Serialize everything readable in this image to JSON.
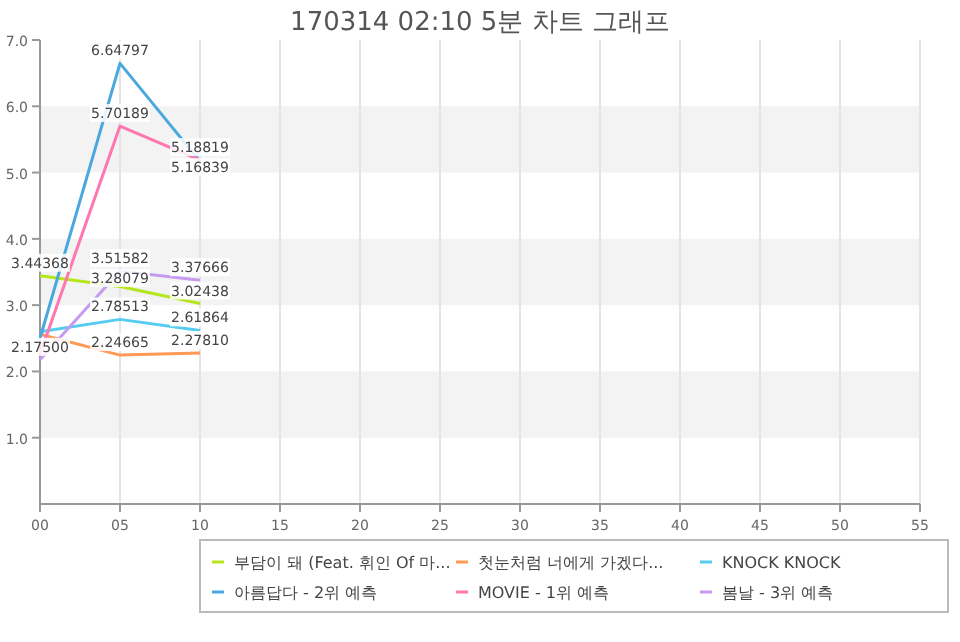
{
  "chart_data": {
    "type": "line",
    "title": "170314 02:10 5분 차트 그래프",
    "x": [
      0,
      5,
      10
    ],
    "xlim": [
      0,
      55
    ],
    "xticks": [
      {
        "value": 0,
        "label": "00"
      },
      {
        "value": 5,
        "label": "05"
      },
      {
        "value": 10,
        "label": "10"
      },
      {
        "value": 15,
        "label": "15"
      },
      {
        "value": 20,
        "label": "20"
      },
      {
        "value": 25,
        "label": "25"
      },
      {
        "value": 30,
        "label": "30"
      },
      {
        "value": 35,
        "label": "35"
      },
      {
        "value": 40,
        "label": "40"
      },
      {
        "value": 45,
        "label": "45"
      },
      {
        "value": 50,
        "label": "50"
      },
      {
        "value": 55,
        "label": "55"
      }
    ],
    "ylim": [
      0,
      7
    ],
    "yticks": [
      {
        "value": 1,
        "label": "1.0"
      },
      {
        "value": 2,
        "label": "2.0"
      },
      {
        "value": 3,
        "label": "3.0"
      },
      {
        "value": 4,
        "label": "4.0"
      },
      {
        "value": 5,
        "label": "5.0"
      },
      {
        "value": 6,
        "label": "6.0"
      },
      {
        "value": 7,
        "label": "7.0"
      }
    ],
    "grid": true,
    "legend": "bottom",
    "marker": "none",
    "line_style": "solid",
    "series": [
      {
        "name": "부담이 돼 (Feat. 휘인 Of 마...",
        "color": "#b5e61d",
        "values": [
          3.44368,
          3.28079,
          3.02438
        ],
        "value_labels": [
          "3.44368",
          "3.28079",
          "3.02438"
        ]
      },
      {
        "name": "첫눈처럼 너에게 가겠다...",
        "color": "#ff9955",
        "values": [
          2.56,
          2.24665,
          2.2781
        ],
        "value_labels": [
          null,
          "2.24665",
          "2.27810"
        ]
      },
      {
        "name": "KNOCK KNOCK",
        "color": "#55ccf0",
        "values": [
          2.6,
          2.78513,
          2.61864
        ],
        "value_labels": [
          null,
          "2.78513",
          "2.61864"
        ]
      },
      {
        "name": "아름답다 - 2위 예측",
        "color": "#4aa8e0",
        "values": [
          2.5,
          6.64797,
          5.16839
        ],
        "value_labels": [
          null,
          "6.64797",
          "5.16839"
        ]
      },
      {
        "name": "MOVIE - 1위 예측",
        "color": "#ff77b0",
        "values": [
          2.26,
          5.70189,
          5.18819
        ],
        "value_labels": [
          null,
          "5.70189",
          "5.18819"
        ]
      },
      {
        "name": "봄날 - 3위 예측",
        "color": "#c79af0",
        "values": [
          2.175,
          3.51582,
          3.37666
        ],
        "value_labels": [
          "2.17500",
          "3.51582",
          "3.37666"
        ]
      }
    ]
  }
}
